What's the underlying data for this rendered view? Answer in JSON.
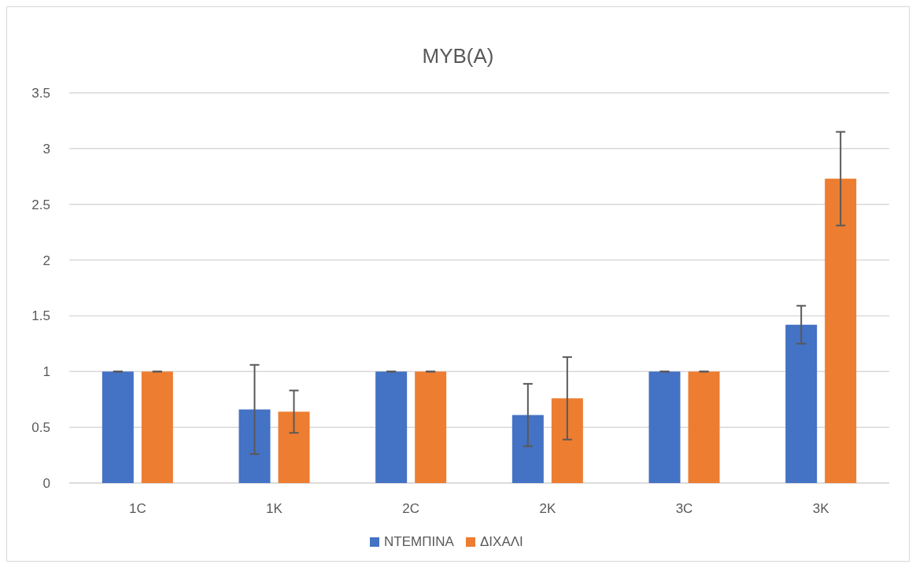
{
  "chart_data": {
    "type": "bar",
    "title": "MYB(A)",
    "categories": [
      "1C",
      "1K",
      "2C",
      "2K",
      "3C",
      "3K"
    ],
    "series": [
      {
        "name": "ΝΤΕΜΠΙΝΑ",
        "color": "#4472c4",
        "values": [
          1,
          0.66,
          1,
          0.61,
          1,
          1.42
        ],
        "errors": [
          0,
          0.4,
          0,
          0.28,
          0,
          0.17
        ]
      },
      {
        "name": "ΔΙΧΑΛΙ",
        "color": "#ed7d31",
        "values": [
          1,
          0.64,
          1,
          0.76,
          1,
          2.73
        ],
        "errors": [
          0,
          0.19,
          0,
          0.37,
          0,
          0.42
        ]
      }
    ],
    "ylim": [
      0,
      3.5
    ],
    "yticks": [
      0,
      0.5,
      1,
      1.5,
      2,
      2.5,
      3,
      3.5
    ],
    "grid": "y",
    "legend": "bottom"
  }
}
